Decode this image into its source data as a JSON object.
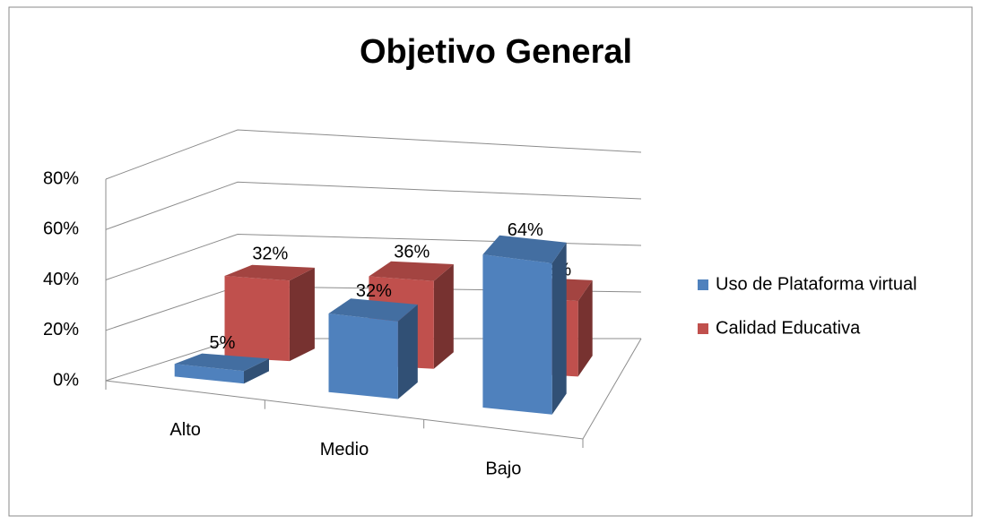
{
  "chart_data": {
    "type": "bar3d",
    "title": "Objetivo General",
    "categories": [
      "Alto",
      "Medio",
      "Bajo"
    ],
    "series": [
      {
        "name": "Uso de Plataforma virtual",
        "color": "#4f81bd",
        "values": [
          5,
          32,
          64
        ],
        "value_labels": [
          "5%",
          "32%",
          "64%"
        ]
      },
      {
        "name": "Calidad Educativa",
        "color": "#c0504d",
        "values": [
          32,
          36,
          32
        ],
        "value_labels": [
          "32%",
          "36%",
          "32%"
        ]
      }
    ],
    "ylim": [
      0,
      80
    ],
    "yticks": [
      {
        "value": 0,
        "label": "0%"
      },
      {
        "value": 20,
        "label": "20%"
      },
      {
        "value": 40,
        "label": "40%"
      },
      {
        "value": 60,
        "label": "60%"
      },
      {
        "value": 80,
        "label": "80%"
      }
    ],
    "grid": true,
    "legend": "right"
  }
}
